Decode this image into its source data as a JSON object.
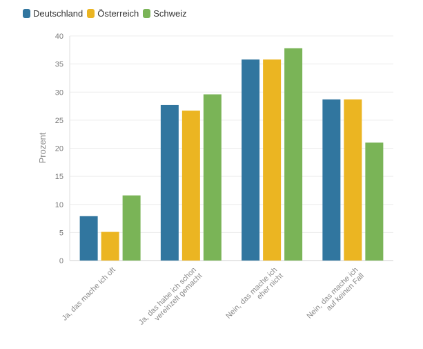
{
  "chart_data": {
    "type": "bar",
    "categories": [
      [
        "Ja, das mache ich oft"
      ],
      [
        "Ja, das habe ich schon",
        "vereinzelt gemacht"
      ],
      [
        "Nein, das mache ich",
        "eher nicht"
      ],
      [
        "Nein, das mache ich",
        "auf keinen Fall"
      ]
    ],
    "series": [
      {
        "name": "Deutschland",
        "color": "#31769f",
        "values": [
          7.9,
          27.7,
          35.8,
          28.7
        ]
      },
      {
        "name": "Österreich",
        "color": "#ebb522",
        "values": [
          5.1,
          26.7,
          35.8,
          28.7
        ]
      },
      {
        "name": "Schweiz",
        "color": "#7ab457",
        "values": [
          11.6,
          29.6,
          37.8,
          21.0
        ]
      }
    ],
    "ylabel": "Prozent",
    "ylim": [
      0,
      40
    ],
    "yticks": [
      0,
      5,
      10,
      15,
      20,
      25,
      30,
      35,
      40
    ],
    "grid": true,
    "legend_position": "top-left"
  }
}
